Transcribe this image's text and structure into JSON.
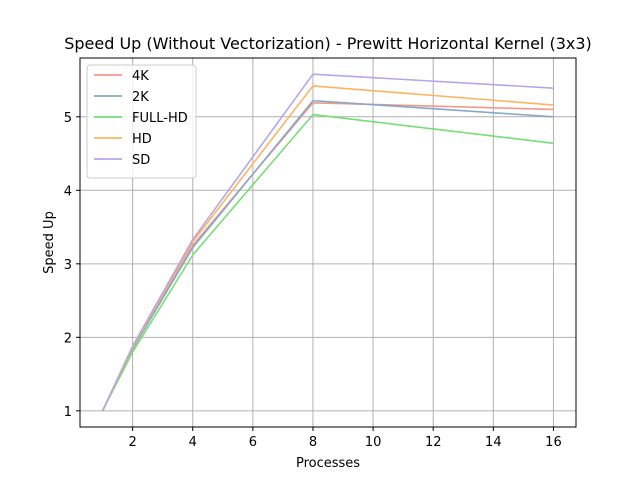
{
  "chart_data": {
    "type": "line",
    "title": "Speed Up (Without Vectorization) - Prewitt Horizontal Kernel (3x3)",
    "xlabel": "Processes",
    "ylabel": "Speed Up",
    "x": [
      1,
      2,
      4,
      8,
      16
    ],
    "xlim": [
      0.25,
      16.75
    ],
    "ylim": [
      0.78,
      5.8
    ],
    "xticks": [
      2,
      4,
      6,
      8,
      10,
      12,
      14,
      16
    ],
    "yticks": [
      1,
      2,
      3,
      4,
      5
    ],
    "grid": true,
    "legend_position": "top-left",
    "series": [
      {
        "name": "4K",
        "color": "#f4998a",
        "values": [
          1.0,
          1.85,
          3.25,
          5.19,
          5.1
        ]
      },
      {
        "name": "2K",
        "color": "#86a8c8",
        "values": [
          1.0,
          1.84,
          3.22,
          5.22,
          5.0
        ]
      },
      {
        "name": "FULL-HD",
        "color": "#77dd77",
        "values": [
          1.0,
          1.8,
          3.12,
          5.03,
          4.64
        ]
      },
      {
        "name": "HD",
        "color": "#fdb462",
        "values": [
          1.0,
          1.86,
          3.3,
          5.42,
          5.16
        ]
      },
      {
        "name": "SD",
        "color": "#b7a5e8",
        "values": [
          1.0,
          1.88,
          3.33,
          5.58,
          5.39
        ]
      }
    ]
  }
}
